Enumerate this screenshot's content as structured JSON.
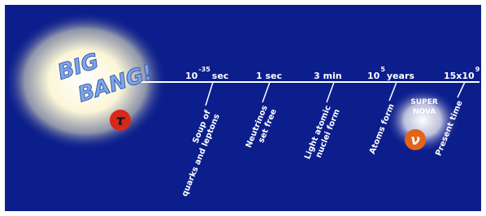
{
  "big_bang": {
    "line1": "BIG",
    "line2": "BANG!",
    "particle": "τ"
  },
  "timeline": [
    {
      "base": "10",
      "exponent": "-35",
      "unit": "sec"
    },
    {
      "base": "1 sec"
    },
    {
      "base": "3 min"
    },
    {
      "base": "10",
      "exponent": "5",
      "unit": "years"
    },
    {
      "base": "15x10",
      "exponent": "9"
    }
  ],
  "events": [
    {
      "lines": [
        "Soup of",
        "quarks and leptons"
      ]
    },
    {
      "lines": [
        "Neutrinos",
        "set free"
      ]
    },
    {
      "lines": [
        "Light atomic",
        "nuclei form"
      ]
    },
    {
      "lines": [
        "Atoms form"
      ]
    },
    {
      "lines": [
        "Present time"
      ]
    }
  ],
  "supernova": {
    "lines": [
      "SUPER",
      "NOVA"
    ],
    "particle": "ν"
  }
}
